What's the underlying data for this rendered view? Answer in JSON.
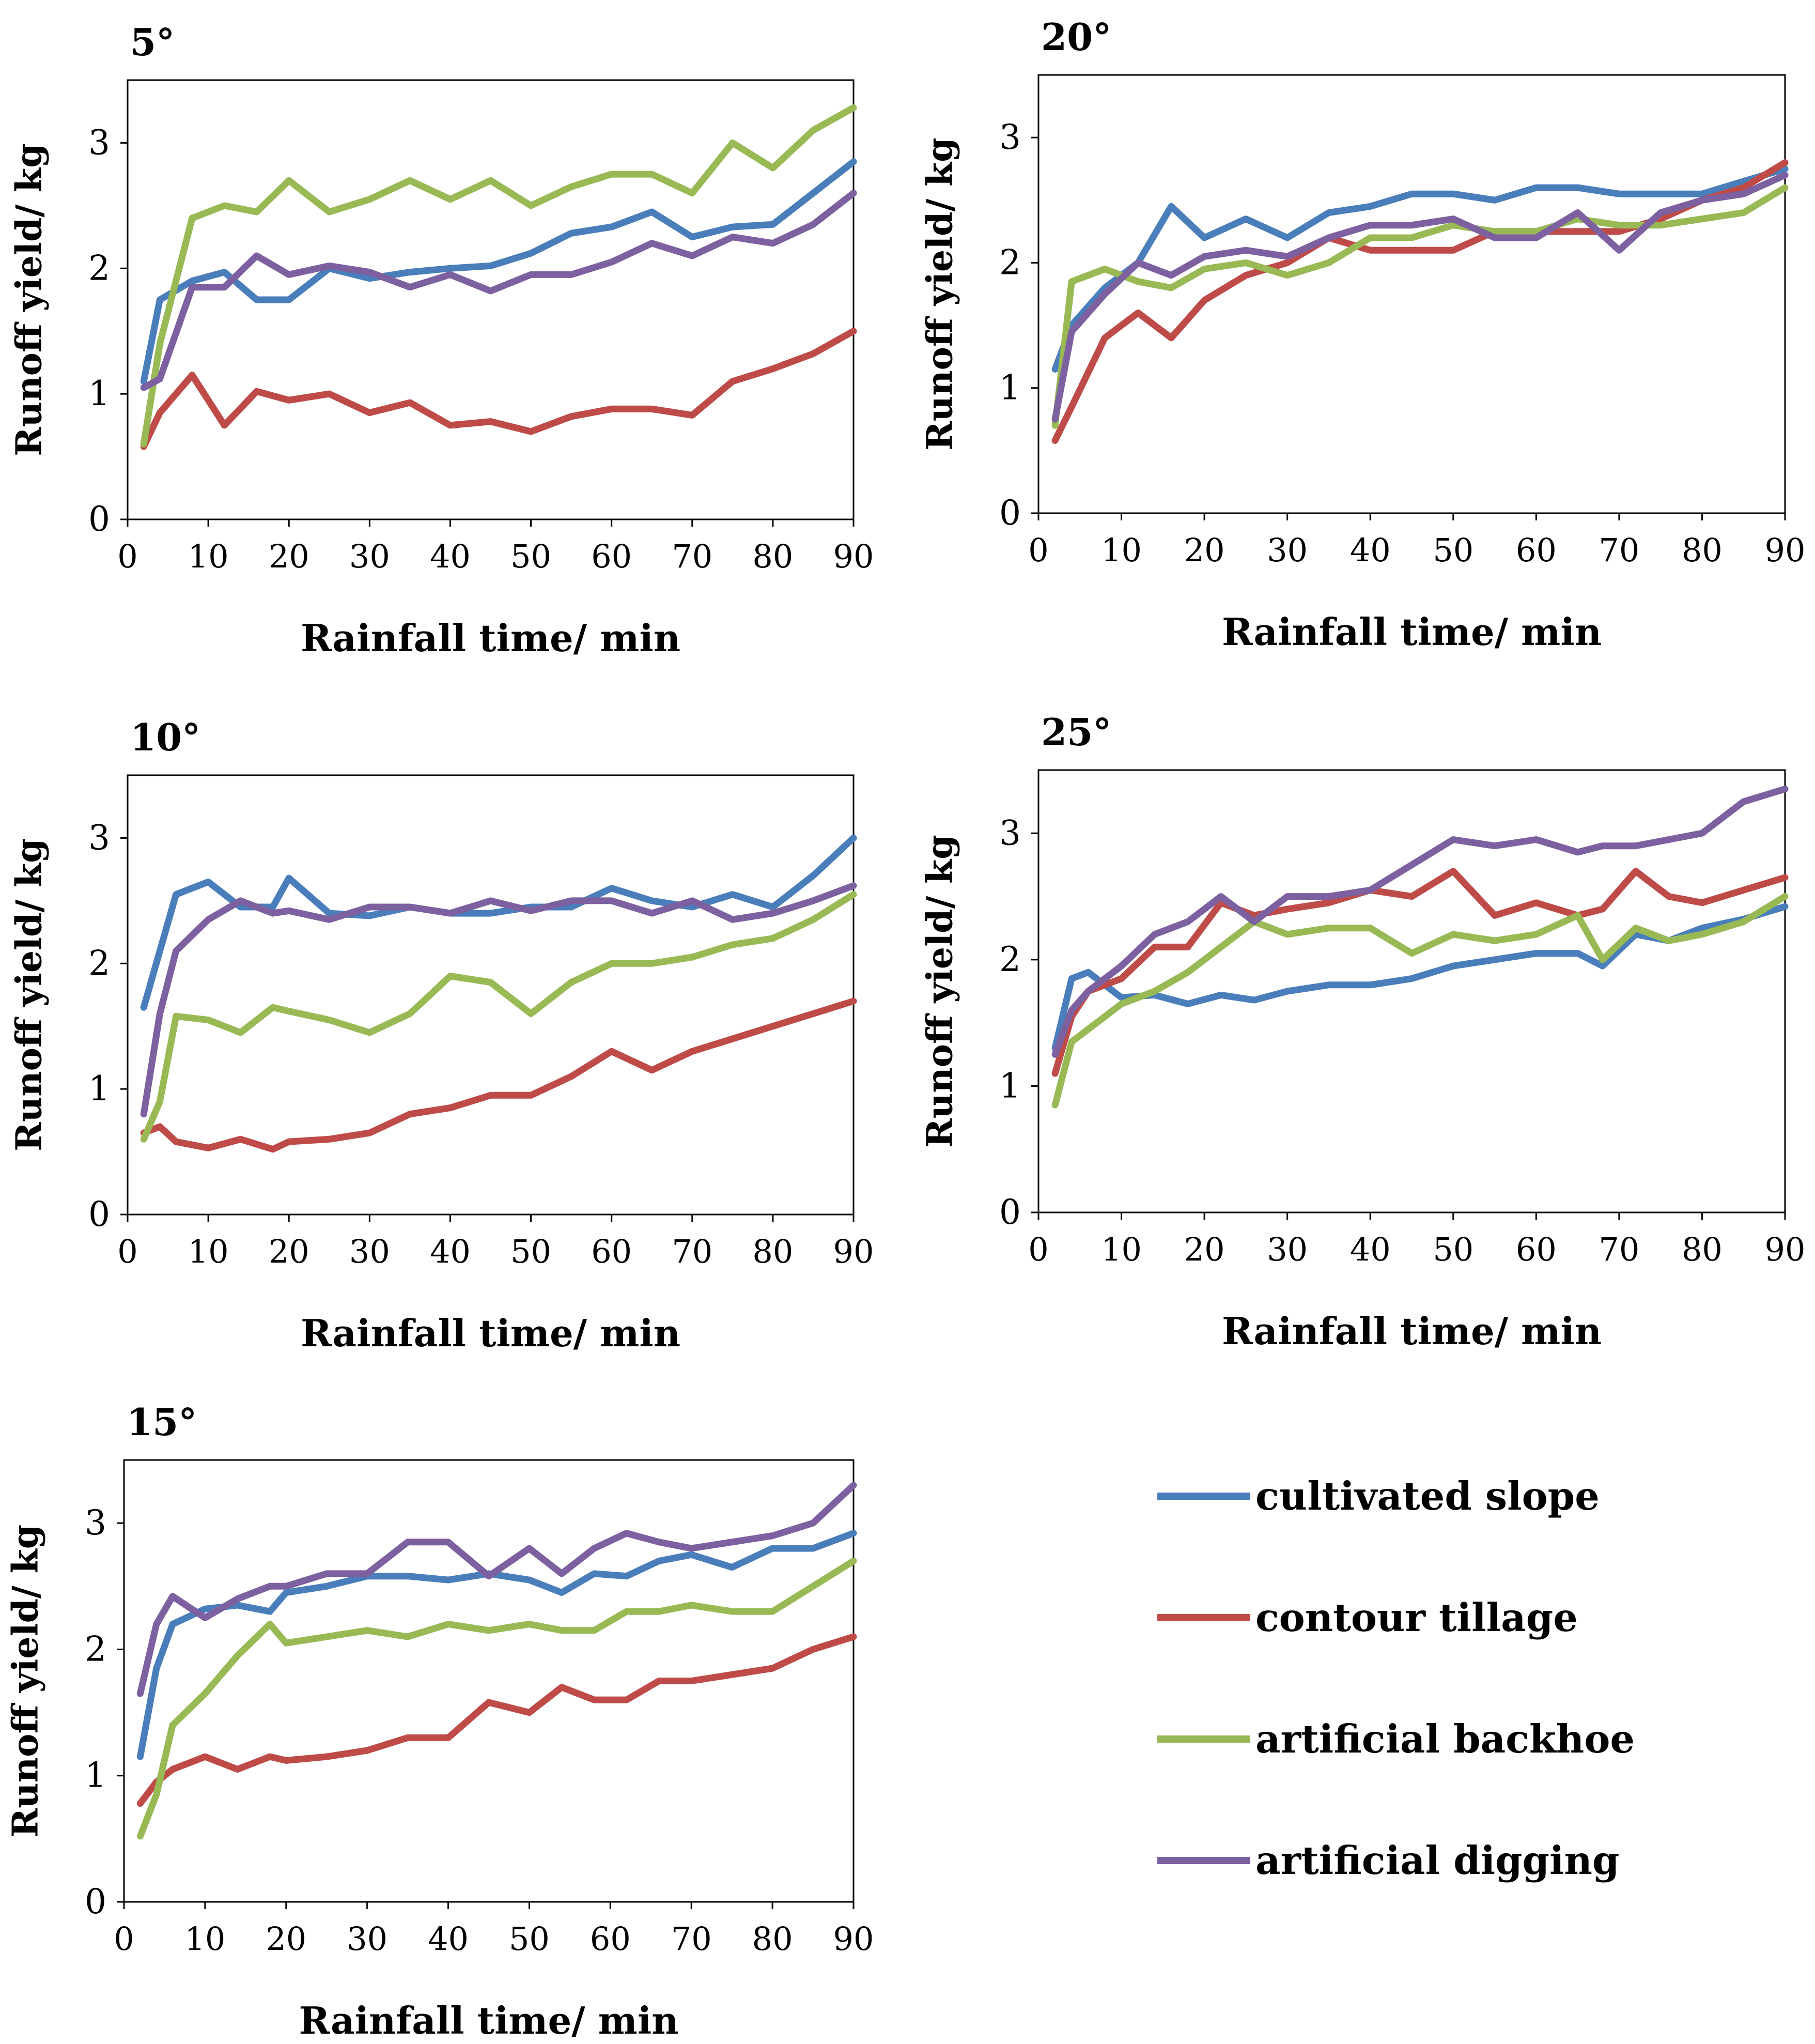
{
  "colors": {
    "cultivated_slope": "#4a7ebb",
    "contour_tillage": "#be4b48",
    "artificial_backhoe": "#98b954",
    "artificial_digging": "#7d60a0"
  },
  "legend": [
    {
      "key": "cultivated_slope",
      "label": "cultivated slope"
    },
    {
      "key": "contour_tillage",
      "label": "contour tillage"
    },
    {
      "key": "artificial_backhoe",
      "label": "artificial backhoe"
    },
    {
      "key": "artificial_digging",
      "label": "artificial digging"
    }
  ],
  "chart_data": [
    {
      "type": "line",
      "title": "5°",
      "xlabel": "Rainfall time/ min",
      "ylabel": "Runoff yield/ kg",
      "xlim": [
        0,
        90
      ],
      "ylim": [
        0,
        3.5
      ],
      "xticks": [
        0,
        10,
        20,
        30,
        40,
        50,
        60,
        70,
        80,
        90
      ],
      "yticks": [
        0,
        1,
        2,
        3
      ],
      "x": [
        2,
        4,
        8,
        12,
        16,
        20,
        25,
        30,
        35,
        40,
        45,
        50,
        55,
        60,
        65,
        70,
        75,
        80,
        85,
        90
      ],
      "series": [
        {
          "name": "cultivated slope",
          "key": "cultivated_slope",
          "values": [
            1.1,
            1.75,
            1.9,
            1.97,
            1.75,
            1.75,
            2.0,
            1.92,
            1.97,
            2.0,
            2.02,
            2.12,
            2.28,
            2.33,
            2.45,
            2.25,
            2.33,
            2.35,
            2.6,
            2.85
          ]
        },
        {
          "name": "contour tillage",
          "key": "contour_tillage",
          "values": [
            0.58,
            0.85,
            1.15,
            0.75,
            1.02,
            0.95,
            1.0,
            0.85,
            0.93,
            0.75,
            0.78,
            0.7,
            0.82,
            0.88,
            0.88,
            0.83,
            1.1,
            1.2,
            1.32,
            1.5
          ]
        },
        {
          "name": "artificial backhoe",
          "key": "artificial_backhoe",
          "values": [
            0.6,
            1.4,
            2.4,
            2.5,
            2.45,
            2.7,
            2.45,
            2.55,
            2.7,
            2.55,
            2.7,
            2.5,
            2.65,
            2.75,
            2.75,
            2.6,
            3.0,
            2.8,
            3.1,
            3.28
          ]
        },
        {
          "name": "artificial digging",
          "key": "artificial_digging",
          "values": [
            1.05,
            1.12,
            1.85,
            1.85,
            2.1,
            1.95,
            2.02,
            1.97,
            1.85,
            1.95,
            1.82,
            1.95,
            1.95,
            2.05,
            2.2,
            2.1,
            2.25,
            2.2,
            2.35,
            2.6
          ]
        }
      ]
    },
    {
      "type": "line",
      "title": "20°",
      "xlabel": "Rainfall time/ min",
      "ylabel": "Runoff yield/ kg",
      "xlim": [
        0,
        90
      ],
      "ylim": [
        0,
        3.5
      ],
      "xticks": [
        0,
        10,
        20,
        30,
        40,
        50,
        60,
        70,
        80,
        90
      ],
      "yticks": [
        0,
        1,
        2,
        3
      ],
      "x": [
        2,
        4,
        8,
        12,
        16,
        20,
        25,
        30,
        35,
        40,
        45,
        50,
        55,
        60,
        65,
        70,
        75,
        80,
        85,
        90
      ],
      "series": [
        {
          "name": "cultivated slope",
          "key": "cultivated_slope",
          "values": [
            1.15,
            1.5,
            1.8,
            2.0,
            2.45,
            2.2,
            2.35,
            2.2,
            2.4,
            2.45,
            2.55,
            2.55,
            2.5,
            2.6,
            2.6,
            2.55,
            2.55,
            2.55,
            2.65,
            2.75
          ]
        },
        {
          "name": "contour tillage",
          "key": "contour_tillage",
          "values": [
            0.58,
            0.85,
            1.4,
            1.6,
            1.4,
            1.7,
            1.9,
            2.0,
            2.2,
            2.1,
            2.1,
            2.1,
            2.25,
            2.25,
            2.25,
            2.25,
            2.35,
            2.5,
            2.6,
            2.8
          ]
        },
        {
          "name": "artificial backhoe",
          "key": "artificial_backhoe",
          "values": [
            0.7,
            1.85,
            1.95,
            1.85,
            1.8,
            1.95,
            2.0,
            1.9,
            2.0,
            2.2,
            2.2,
            2.3,
            2.25,
            2.25,
            2.35,
            2.3,
            2.3,
            2.35,
            2.4,
            2.6
          ]
        },
        {
          "name": "artificial digging",
          "key": "artificial_digging",
          "values": [
            0.75,
            1.45,
            1.75,
            2.0,
            1.9,
            2.05,
            2.1,
            2.05,
            2.2,
            2.3,
            2.3,
            2.35,
            2.2,
            2.2,
            2.4,
            2.1,
            2.4,
            2.5,
            2.55,
            2.7
          ]
        }
      ]
    },
    {
      "type": "line",
      "title": "10°",
      "xlabel": "Rainfall time/ min",
      "ylabel": "Runoff yield/ kg",
      "xlim": [
        0,
        90
      ],
      "ylim": [
        0,
        3.5
      ],
      "xticks": [
        0,
        10,
        20,
        30,
        40,
        50,
        60,
        70,
        80,
        90
      ],
      "yticks": [
        0,
        1,
        2,
        3
      ],
      "x": [
        2,
        4,
        6,
        10,
        14,
        18,
        20,
        25,
        30,
        35,
        40,
        45,
        50,
        55,
        60,
        65,
        70,
        75,
        80,
        85,
        90
      ],
      "series": [
        {
          "name": "cultivated slope",
          "key": "cultivated_slope",
          "values": [
            1.65,
            2.1,
            2.55,
            2.65,
            2.45,
            2.45,
            2.68,
            2.4,
            2.38,
            2.45,
            2.4,
            2.4,
            2.45,
            2.45,
            2.6,
            2.5,
            2.45,
            2.55,
            2.45,
            2.7,
            3.0
          ]
        },
        {
          "name": "contour tillage",
          "key": "contour_tillage",
          "values": [
            0.65,
            0.7,
            0.58,
            0.53,
            0.6,
            0.52,
            0.58,
            0.6,
            0.65,
            0.8,
            0.85,
            0.95,
            0.95,
            1.1,
            1.3,
            1.15,
            1.3,
            1.4,
            1.5,
            1.6,
            1.7
          ]
        },
        {
          "name": "artificial backhoe",
          "key": "artificial_backhoe",
          "values": [
            0.6,
            0.9,
            1.58,
            1.55,
            1.45,
            1.65,
            1.62,
            1.55,
            1.45,
            1.6,
            1.9,
            1.85,
            1.6,
            1.85,
            2.0,
            2.0,
            2.05,
            2.15,
            2.2,
            2.35,
            2.55
          ]
        },
        {
          "name": "artificial digging",
          "key": "artificial_digging",
          "values": [
            0.8,
            1.6,
            2.1,
            2.35,
            2.5,
            2.4,
            2.42,
            2.35,
            2.45,
            2.45,
            2.4,
            2.5,
            2.42,
            2.5,
            2.5,
            2.4,
            2.5,
            2.35,
            2.4,
            2.5,
            2.62
          ]
        }
      ]
    },
    {
      "type": "line",
      "title": "25°",
      "xlabel": "Rainfall time/ min",
      "ylabel": "Runoff yield/ kg",
      "xlim": [
        0,
        90
      ],
      "ylim": [
        0,
        3.5
      ],
      "xticks": [
        0,
        10,
        20,
        30,
        40,
        50,
        60,
        70,
        80,
        90
      ],
      "yticks": [
        0,
        1,
        2,
        3
      ],
      "x": [
        2,
        4,
        6,
        10,
        14,
        18,
        22,
        26,
        30,
        35,
        40,
        45,
        50,
        55,
        60,
        65,
        68,
        72,
        76,
        80,
        85,
        90
      ],
      "series": [
        {
          "name": "cultivated slope",
          "key": "cultivated_slope",
          "values": [
            1.3,
            1.85,
            1.9,
            1.7,
            1.72,
            1.65,
            1.72,
            1.68,
            1.75,
            1.8,
            1.8,
            1.85,
            1.95,
            2.0,
            2.05,
            2.05,
            1.95,
            2.2,
            2.15,
            2.25,
            2.32,
            2.42
          ]
        },
        {
          "name": "contour tillage",
          "key": "contour_tillage",
          "values": [
            1.1,
            1.55,
            1.75,
            1.85,
            2.1,
            2.1,
            2.45,
            2.35,
            2.4,
            2.45,
            2.55,
            2.5,
            2.7,
            2.35,
            2.45,
            2.35,
            2.4,
            2.7,
            2.5,
            2.45,
            2.55,
            2.65
          ]
        },
        {
          "name": "artificial backhoe",
          "key": "artificial_backhoe",
          "values": [
            0.85,
            1.35,
            1.45,
            1.65,
            1.75,
            1.9,
            2.1,
            2.3,
            2.2,
            2.25,
            2.25,
            2.05,
            2.2,
            2.15,
            2.2,
            2.35,
            2.0,
            2.25,
            2.15,
            2.2,
            2.3,
            2.5
          ]
        },
        {
          "name": "artificial digging",
          "key": "artificial_digging",
          "values": [
            1.25,
            1.6,
            1.75,
            1.95,
            2.2,
            2.3,
            2.5,
            2.3,
            2.5,
            2.5,
            2.55,
            2.75,
            2.95,
            2.9,
            2.95,
            2.85,
            2.9,
            2.9,
            2.95,
            3.0,
            3.25,
            3.35
          ]
        }
      ]
    },
    {
      "type": "line",
      "title": "15°",
      "xlabel": "Rainfall time/ min",
      "ylabel": "Runoff yield/ kg",
      "xlim": [
        0,
        90
      ],
      "ylim": [
        0,
        3.5
      ],
      "xticks": [
        0,
        10,
        20,
        30,
        40,
        50,
        60,
        70,
        80,
        90
      ],
      "yticks": [
        0,
        1,
        2,
        3
      ],
      "x": [
        2,
        4,
        6,
        10,
        14,
        18,
        20,
        25,
        30,
        35,
        40,
        45,
        50,
        54,
        58,
        62,
        66,
        70,
        75,
        80,
        85,
        90
      ],
      "series": [
        {
          "name": "cultivated slope",
          "key": "cultivated_slope",
          "values": [
            1.15,
            1.85,
            2.2,
            2.32,
            2.35,
            2.3,
            2.45,
            2.5,
            2.58,
            2.58,
            2.55,
            2.6,
            2.55,
            2.45,
            2.6,
            2.58,
            2.7,
            2.75,
            2.65,
            2.8,
            2.8,
            2.92
          ]
        },
        {
          "name": "contour tillage",
          "key": "contour_tillage",
          "values": [
            0.78,
            0.95,
            1.05,
            1.15,
            1.05,
            1.15,
            1.12,
            1.15,
            1.2,
            1.3,
            1.3,
            1.58,
            1.5,
            1.7,
            1.6,
            1.6,
            1.75,
            1.75,
            1.8,
            1.85,
            2.0,
            2.1
          ]
        },
        {
          "name": "artificial backhoe",
          "key": "artificial_backhoe",
          "values": [
            0.52,
            0.85,
            1.4,
            1.65,
            1.95,
            2.2,
            2.05,
            2.1,
            2.15,
            2.1,
            2.2,
            2.15,
            2.2,
            2.15,
            2.15,
            2.3,
            2.3,
            2.35,
            2.3,
            2.3,
            2.5,
            2.7
          ]
        },
        {
          "name": "artificial digging",
          "key": "artificial_digging",
          "values": [
            1.65,
            2.2,
            2.42,
            2.25,
            2.4,
            2.5,
            2.5,
            2.6,
            2.6,
            2.85,
            2.85,
            2.58,
            2.8,
            2.6,
            2.8,
            2.92,
            2.85,
            2.8,
            2.85,
            2.9,
            3.0,
            3.3
          ]
        }
      ]
    }
  ]
}
